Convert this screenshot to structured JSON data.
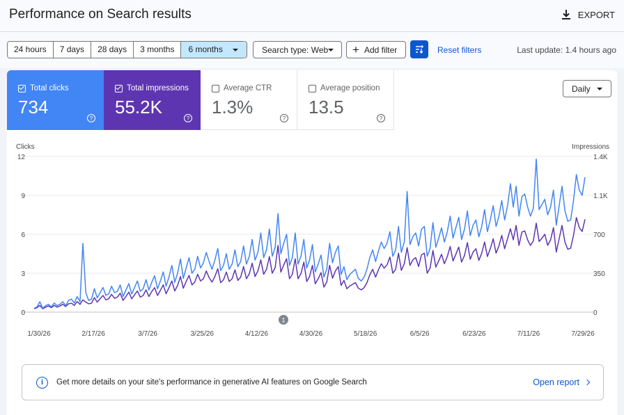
{
  "header": {
    "title": "Performance on Search results",
    "export_label": "EXPORT"
  },
  "toolbar": {
    "ranges": [
      "24 hours",
      "7 days",
      "28 days",
      "3 months",
      "6 months"
    ],
    "active_range": "6 months",
    "search_type": "Search type: Web",
    "add_filter": "Add filter",
    "reset_filters": "Reset filters",
    "last_update": "Last update: 1.4 hours ago"
  },
  "metrics": [
    {
      "label": "Total clicks",
      "value": "734",
      "checked": true
    },
    {
      "label": "Total impressions",
      "value": "55.2K",
      "checked": true
    },
    {
      "label": "Average CTR",
      "value": "1.3%",
      "checked": false
    },
    {
      "label": "Average position",
      "value": "13.5",
      "checked": false
    }
  ],
  "granularity": "Daily",
  "colors": {
    "clicks": "#4285f4",
    "impressions": "#5e35b1",
    "accent": "#0b57d0"
  },
  "chart_data": {
    "type": "line",
    "left_axis": {
      "label": "Clicks",
      "ticks": [
        "12",
        "9",
        "6",
        "3",
        "0"
      ],
      "ylim": [
        0,
        12
      ]
    },
    "right_axis": {
      "label": "Impressions",
      "ticks": [
        "1.4K",
        "1.1K",
        "700",
        "350",
        "0"
      ],
      "ylim": [
        0,
        1400
      ]
    },
    "x_ticks": [
      "1/30/26",
      "2/17/26",
      "3/7/26",
      "3/25/26",
      "4/12/26",
      "4/30/26",
      "5/18/26",
      "6/5/26",
      "6/23/26",
      "7/11/26",
      "7/29/26"
    ],
    "annotation": "1",
    "series": [
      {
        "name": "Clicks",
        "axis": "left",
        "values": [
          0.3,
          0.4,
          0.8,
          0.3,
          0.5,
          0.6,
          0.4,
          0.7,
          0.5,
          0.6,
          0.8,
          0.5,
          0.9,
          1.0,
          0.7,
          1.2,
          0.8,
          5.3,
          1.5,
          0.9,
          1.0,
          1.8,
          1.1,
          1.5,
          1.9,
          1.3,
          1.4,
          2.0,
          1.5,
          1.6,
          2.1,
          1.2,
          1.7,
          2.2,
          1.4,
          1.9,
          2.4,
          1.6,
          1.8,
          2.5,
          1.7,
          2.3,
          2.8,
          1.8,
          2.4,
          3.1,
          2.0,
          2.7,
          3.6,
          2.3,
          3.0,
          4.1,
          2.6,
          3.4,
          4.2,
          3.0,
          3.3,
          4.3,
          3.4,
          3.8,
          4.6,
          3.9,
          3.3,
          4.0,
          4.9,
          3.2,
          3.6,
          4.5,
          3.3,
          3.7,
          4.8,
          3.5,
          3.9,
          5.1,
          3.7,
          4.3,
          5.6,
          4.0,
          4.6,
          6.1,
          4.2,
          4.8,
          6.4,
          4.3,
          5.0,
          7.6,
          4.5,
          5.3,
          6.0,
          3.6,
          4.2,
          6.1,
          3.7,
          4.3,
          5.6,
          3.4,
          4.0,
          5.2,
          3.1,
          3.7,
          4.4,
          2.7,
          3.3,
          5.3,
          3.8,
          4.6,
          5.1,
          2.9,
          3.5,
          2.5,
          2.9,
          3.1,
          3.3,
          2.6,
          2.4,
          2.7,
          3.3,
          4.2,
          4.8,
          3.9,
          4.7,
          5.4,
          4.9,
          5.3,
          6.2,
          4.3,
          4.8,
          6.6,
          4.6,
          5.4,
          9.3,
          5.2,
          5.8,
          6.1,
          5.1,
          6.4,
          6.6,
          4.3,
          4.9,
          6.9,
          5.0,
          5.7,
          6.5,
          5.4,
          6.2,
          7.4,
          5.7,
          6.5,
          7.3,
          5.6,
          6.4,
          7.8,
          5.9,
          6.7,
          7.1,
          5.8,
          6.6,
          7.9,
          6.2,
          7.1,
          8.2,
          6.6,
          7.4,
          8.6,
          7.1,
          8.2,
          9.9,
          8.1,
          9.7,
          7.4,
          8.9,
          9.1,
          8.1,
          7.4,
          8.0,
          11.8,
          7.9,
          8.3,
          8.7,
          7.5,
          8.1,
          9.4,
          6.7,
          8.2,
          9.7,
          7.8,
          7.0,
          7.1,
          8.6,
          10.6,
          9.4,
          9.0,
          10.4
        ]
      },
      {
        "name": "Impressions",
        "axis": "right",
        "values": [
          30,
          40,
          60,
          30,
          45,
          55,
          40,
          60,
          45,
          55,
          70,
          50,
          75,
          80,
          60,
          95,
          70,
          110,
          90,
          75,
          80,
          130,
          90,
          120,
          150,
          110,
          120,
          160,
          125,
          135,
          170,
          105,
          140,
          180,
          120,
          155,
          190,
          135,
          150,
          200,
          140,
          185,
          220,
          150,
          195,
          245,
          165,
          220,
          280,
          190,
          240,
          320,
          215,
          275,
          330,
          245,
          270,
          340,
          280,
          300,
          370,
          310,
          270,
          320,
          390,
          265,
          290,
          360,
          275,
          300,
          380,
          285,
          315,
          410,
          300,
          345,
          440,
          320,
          370,
          470,
          340,
          385,
          500,
          350,
          400,
          600,
          360,
          425,
          480,
          300,
          340,
          480,
          300,
          345,
          450,
          275,
          320,
          420,
          255,
          300,
          355,
          225,
          270,
          420,
          305,
          370,
          410,
          240,
          285,
          210,
          235,
          250,
          265,
          215,
          200,
          220,
          265,
          335,
          385,
          315,
          380,
          435,
          395,
          425,
          495,
          350,
          385,
          530,
          375,
          435,
          580,
          420,
          470,
          490,
          410,
          515,
          530,
          350,
          395,
          555,
          405,
          460,
          520,
          435,
          500,
          590,
          460,
          520,
          585,
          450,
          510,
          625,
          475,
          540,
          570,
          465,
          530,
          630,
          500,
          570,
          660,
          530,
          595,
          690,
          570,
          660,
          750,
          650,
          780,
          600,
          720,
          730,
          650,
          600,
          640,
          800,
          635,
          665,
          700,
          600,
          650,
          760,
          540,
          660,
          780,
          630,
          565,
          575,
          690,
          850,
          760,
          725,
          835
        ]
      }
    ]
  },
  "banner": {
    "text": "Get more details on your site's performance in generative AI features on Google Search",
    "link": "Open report"
  }
}
